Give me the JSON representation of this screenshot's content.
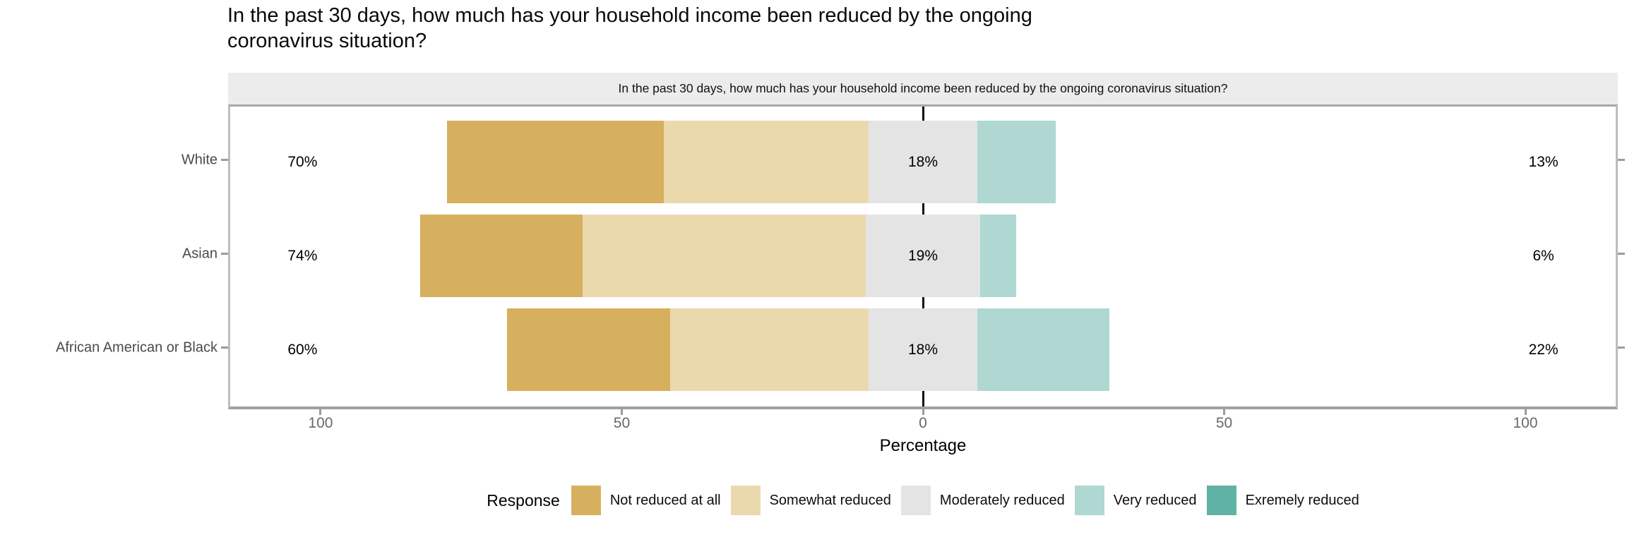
{
  "page": {
    "background": "#ffffff"
  },
  "chart_data": {
    "type": "bar",
    "subtype": "diverging-stacked-likert-horizontal",
    "title": "In the past 30 days, how much has your household income been reduced by the ongoing coronavirus situation?",
    "facet_label": "In the past 30 days, how much has your household income been reduced by the ongoing coronavirus situation?",
    "xlabel": "Percentage",
    "xlim": [
      -115,
      115
    ],
    "grid": "off",
    "zero_reference_line": true,
    "legend_position": "bottom",
    "legend_title": "Response",
    "categories": [
      "White",
      "Asian",
      "African American or Black"
    ],
    "series": [
      {
        "name": "Not reduced at all",
        "color": "#d7b05f",
        "values": [
          36,
          27,
          27
        ]
      },
      {
        "name": "Somewhat reduced",
        "color": "#ebd9ae",
        "values": [
          34,
          47,
          33
        ]
      },
      {
        "name": "Moderately reduced",
        "color": "#e4e4e4",
        "values": [
          18,
          19,
          18
        ]
      },
      {
        "name": "Very reduced",
        "color": "#aed8d1",
        "values": [
          13,
          6,
          22
        ]
      },
      {
        "name": "Exremely reduced",
        "color": "#60b2a4",
        "values": [
          0,
          0,
          0
        ]
      }
    ],
    "row_totals": [
      {
        "low": "70%",
        "mid": "18%",
        "high": "13%"
      },
      {
        "low": "74%",
        "mid": "19%",
        "high": "6%"
      },
      {
        "low": "60%",
        "mid": "18%",
        "high": "22%"
      }
    ],
    "x_ticks": [
      {
        "value": -100,
        "label": "100"
      },
      {
        "value": -50,
        "label": "50"
      },
      {
        "value": 0,
        "label": "0"
      },
      {
        "value": 50,
        "label": "50"
      },
      {
        "value": 100,
        "label": "100"
      }
    ],
    "total_label_positions": {
      "low": -103,
      "mid": 0,
      "high": 103
    }
  }
}
